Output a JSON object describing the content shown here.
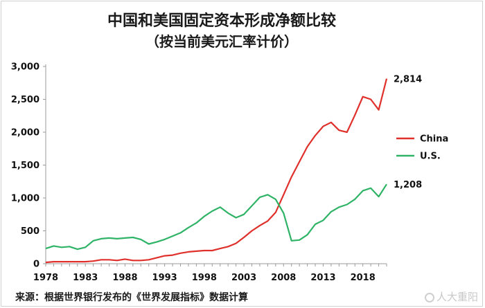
{
  "chart_data": {
    "type": "line",
    "title": "中国和美国固定资本形成净额比较",
    "subtitle": "（按当前美元汇率计价）",
    "ylim": [
      0,
      3000
    ],
    "yticks": [
      0,
      500,
      1000,
      1500,
      2000,
      2500,
      3000
    ],
    "ytick_labels": [
      "0",
      "500",
      "1,000",
      "1,500",
      "2,000",
      "2,500",
      "3,000"
    ],
    "xlim": [
      1978,
      2021
    ],
    "xticks": [
      1978,
      1983,
      1988,
      1993,
      1998,
      2003,
      2008,
      2013,
      2018
    ],
    "xtick_labels": [
      "1978",
      "1983",
      "1988",
      "1993",
      "1998",
      "2003",
      "2008",
      "2013",
      "2018"
    ],
    "legend_position": "right",
    "grid": false,
    "x": [
      1978,
      1979,
      1980,
      1981,
      1982,
      1983,
      1984,
      1985,
      1986,
      1987,
      1988,
      1989,
      1990,
      1991,
      1992,
      1993,
      1994,
      1995,
      1996,
      1997,
      1998,
      1999,
      2000,
      2001,
      2002,
      2003,
      2004,
      2005,
      2006,
      2007,
      2008,
      2009,
      2010,
      2011,
      2012,
      2013,
      2014,
      2015,
      2016,
      2017,
      2018,
      2019,
      2020,
      2021
    ],
    "series": [
      {
        "name": "China",
        "color": "#e0302b",
        "values": [
          20,
          30,
          30,
          30,
          30,
          30,
          40,
          60,
          60,
          50,
          70,
          50,
          50,
          60,
          90,
          120,
          130,
          160,
          180,
          190,
          200,
          200,
          230,
          260,
          310,
          400,
          500,
          580,
          650,
          780,
          1050,
          1320,
          1550,
          1780,
          1950,
          2090,
          2150,
          2030,
          2000,
          2260,
          2540,
          2500,
          2340,
          2814
        ],
        "end_label": "2,814"
      },
      {
        "name": "U.S.",
        "color": "#2fb366",
        "values": [
          230,
          270,
          250,
          260,
          220,
          250,
          350,
          380,
          390,
          380,
          390,
          400,
          370,
          300,
          330,
          370,
          420,
          470,
          550,
          620,
          720,
          800,
          860,
          770,
          700,
          750,
          880,
          1010,
          1050,
          980,
          770,
          350,
          360,
          440,
          600,
          660,
          790,
          860,
          900,
          980,
          1110,
          1150,
          1020,
          1208
        ],
        "end_label": "1,208"
      }
    ]
  },
  "source_text": "来源：根据世界银行发布的《世界发展指标》数据计算",
  "watermark_text": "人大重阳"
}
